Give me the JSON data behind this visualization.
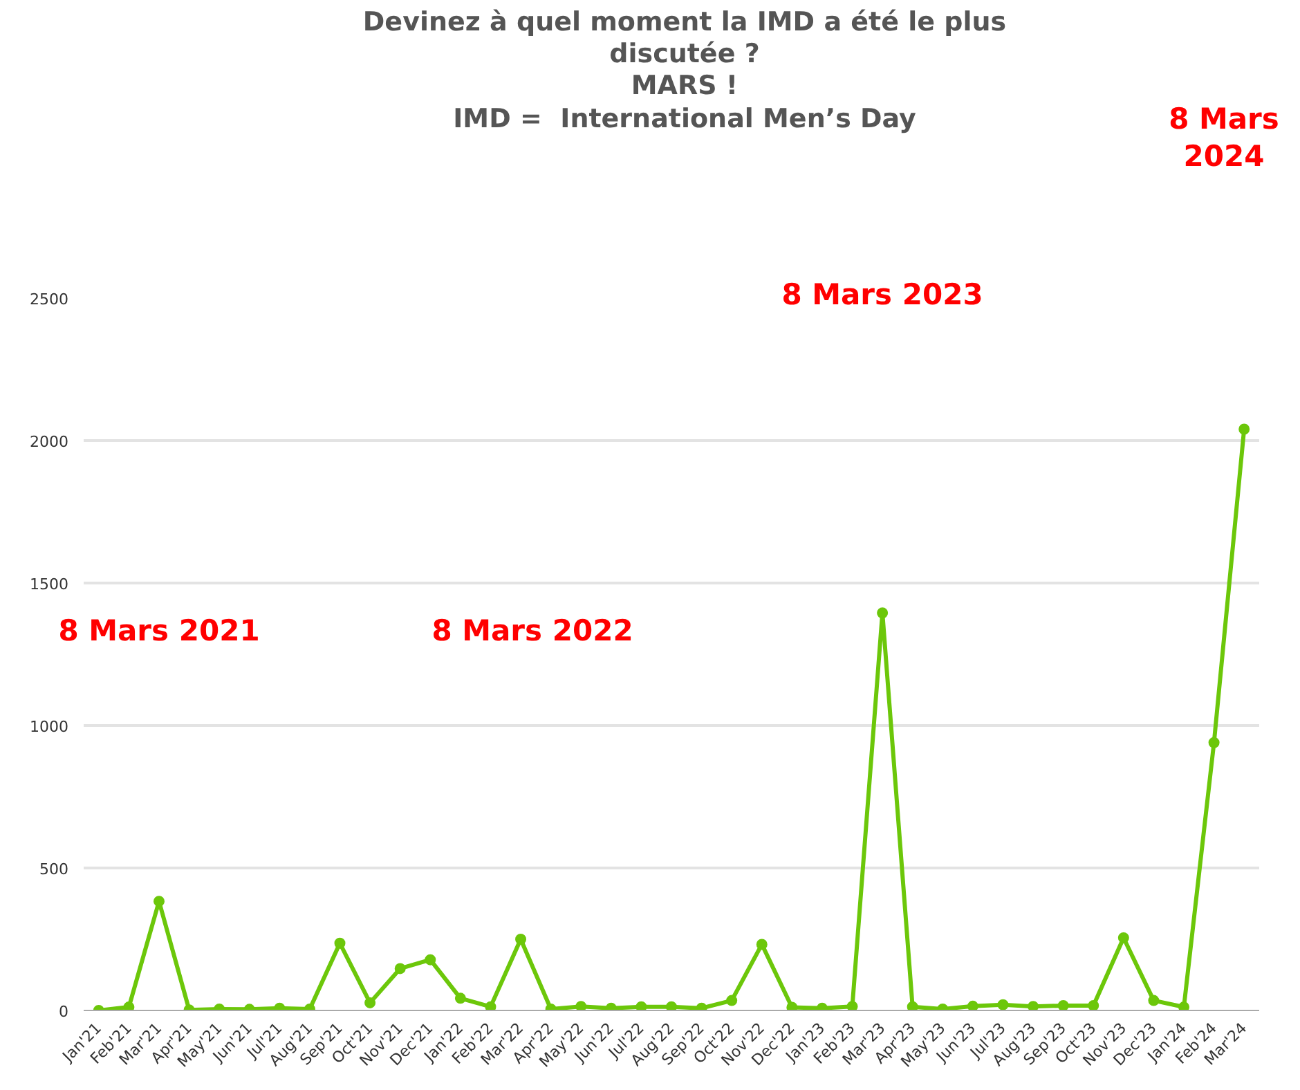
{
  "chart_data": {
    "type": "line",
    "title": "Devinez à quel moment la IMD a été le plus discutée ?\nMARS !\nIMD =  International Men’s Day",
    "categories": [
      "Jan'21",
      "Feb'21",
      "Mar'21",
      "Apr'21",
      "May'21",
      "Jun'21",
      "Jul'21",
      "Aug'21",
      "Sep'21",
      "Oct'21",
      "Nov'21",
      "Dec'21",
      "Jan'22",
      "Feb'22",
      "Mar'22",
      "Apr'22",
      "May'22",
      "Jun'22",
      "Jul'22",
      "Aug'22",
      "Sep'22",
      "Oct'22",
      "Nov'22",
      "Dec'22",
      "Jan'23",
      "Feb'23",
      "Mar'23",
      "Apr'23",
      "May'23",
      "Jun'23",
      "Jul'23",
      "Aug'23",
      "Sep'23",
      "Oct'23",
      "Nov'23",
      "Dec'23",
      "Jan'24",
      "Feb'24",
      "Mar'24"
    ],
    "series": [
      {
        "color": "#6cc70a",
        "values": [
          0,
          12,
          383,
          2,
          5,
          4,
          8,
          5,
          236,
          27,
          147,
          178,
          43,
          13,
          250,
          5,
          14,
          8,
          13,
          13,
          8,
          35,
          232,
          11,
          8,
          14,
          1395,
          13,
          5,
          15,
          20,
          14,
          17,
          17,
          255,
          35,
          12,
          940,
          2040
        ]
      }
    ],
    "ylim": [
      0,
      2500
    ],
    "yticks": [
      0,
      500,
      1000,
      1500,
      2000,
      2500
    ],
    "grid": "y",
    "marker": "circle",
    "line_style": "solid",
    "annotations": [
      "8 Mars 2021",
      "8 Mars 2022",
      "8 Mars 2023",
      "8 Mars\n2024"
    ]
  }
}
